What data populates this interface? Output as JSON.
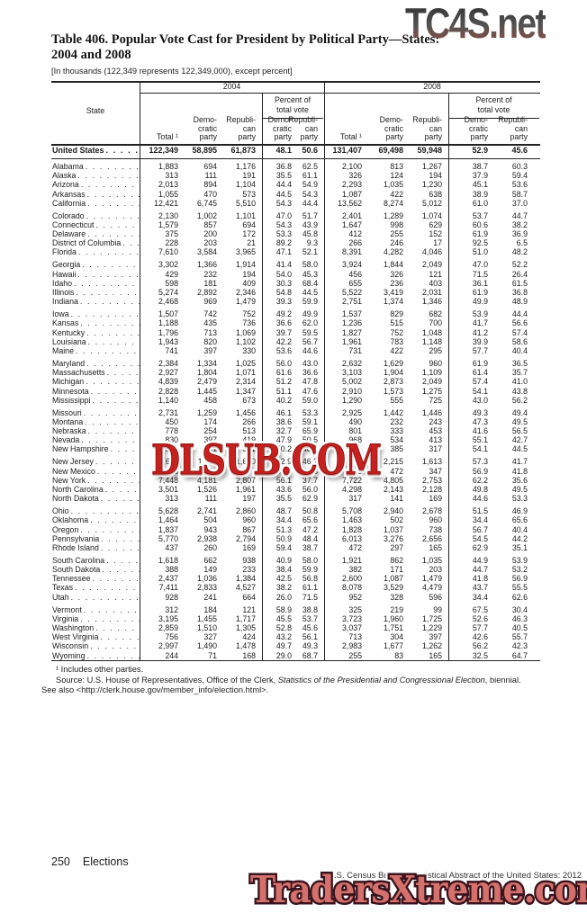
{
  "watermarks": {
    "top": "TC4S.net",
    "middle": "DLSUB.COM",
    "bottom": "TradersXtreme.com"
  },
  "title": {
    "line1": "Table 406. Popular Vote Cast for President by Political Party—States:",
    "line2": "2004 and 2008",
    "bracket_note": "[In thousands (122,349 represents 122,349,000), except percent]"
  },
  "table": {
    "state_header": "State",
    "year1": "2004",
    "year2": "2008",
    "pct_header": "Percent of\ntotal vote",
    "total_label": "Total ¹",
    "dem_label": "Demo-\ncratic\nparty",
    "rep_label": "Republi-\ncan\nparty",
    "us_row": {
      "name": "United States",
      "values": [
        "122,349",
        "58,895",
        "61,873",
        "48.1",
        "50.6",
        "131,407",
        "69,498",
        "59,948",
        "52.9",
        "45.6"
      ]
    },
    "rows": [
      {
        "name": "Alabama",
        "gap": false,
        "values": [
          "1,883",
          "694",
          "1,176",
          "36.8",
          "62.5",
          "2,100",
          "813",
          "1,267",
          "38.7",
          "60.3"
        ]
      },
      {
        "name": "Alaska",
        "gap": false,
        "values": [
          "313",
          "111",
          "191",
          "35.5",
          "61.1",
          "326",
          "124",
          "194",
          "37.9",
          "59.4"
        ]
      },
      {
        "name": "Arizona",
        "gap": false,
        "values": [
          "2,013",
          "894",
          "1,104",
          "44.4",
          "54.9",
          "2,293",
          "1,035",
          "1,230",
          "45.1",
          "53.6"
        ]
      },
      {
        "name": "Arkansas",
        "gap": false,
        "values": [
          "1,055",
          "470",
          "573",
          "44.5",
          "54.3",
          "1,087",
          "422",
          "638",
          "38.9",
          "58.7"
        ]
      },
      {
        "name": "California",
        "gap": false,
        "values": [
          "12,421",
          "6,745",
          "5,510",
          "54.3",
          "44.4",
          "13,562",
          "8,274",
          "5,012",
          "61.0",
          "37.0"
        ]
      },
      {
        "name": "Colorado",
        "gap": true,
        "values": [
          "2,130",
          "1,002",
          "1,101",
          "47.0",
          "51.7",
          "2,401",
          "1,289",
          "1,074",
          "53.7",
          "44.7"
        ]
      },
      {
        "name": "Connecticut",
        "gap": false,
        "values": [
          "1,579",
          "857",
          "694",
          "54.3",
          "43.9",
          "1,647",
          "998",
          "629",
          "60.6",
          "38.2"
        ]
      },
      {
        "name": "Delaware",
        "gap": false,
        "values": [
          "375",
          "200",
          "172",
          "53.3",
          "45.8",
          "412",
          "255",
          "152",
          "61.9",
          "36.9"
        ]
      },
      {
        "name": "District of Columbia",
        "gap": false,
        "values": [
          "228",
          "203",
          "21",
          "89.2",
          "9.3",
          "266",
          "246",
          "17",
          "92.5",
          "6.5"
        ]
      },
      {
        "name": "Florida",
        "gap": false,
        "values": [
          "7,610",
          "3,584",
          "3,965",
          "47.1",
          "52.1",
          "8,391",
          "4,282",
          "4,046",
          "51.0",
          "48.2"
        ]
      },
      {
        "name": "Georgia",
        "gap": true,
        "values": [
          "3,302",
          "1,366",
          "1,914",
          "41.4",
          "58.0",
          "3,924",
          "1,844",
          "2,049",
          "47.0",
          "52.2"
        ]
      },
      {
        "name": "Hawaii",
        "gap": false,
        "values": [
          "429",
          "232",
          "194",
          "54.0",
          "45.3",
          "456",
          "326",
          "121",
          "71.5",
          "26.4"
        ]
      },
      {
        "name": "Idaho",
        "gap": false,
        "values": [
          "598",
          "181",
          "409",
          "30.3",
          "68.4",
          "655",
          "236",
          "403",
          "36.1",
          "61.5"
        ]
      },
      {
        "name": "Illinois",
        "gap": false,
        "values": [
          "5,274",
          "2,892",
          "2,346",
          "54.8",
          "44.5",
          "5,522",
          "3,419",
          "2,031",
          "61.9",
          "36.8"
        ]
      },
      {
        "name": "Indiana",
        "gap": false,
        "values": [
          "2,468",
          "969",
          "1,479",
          "39.3",
          "59.9",
          "2,751",
          "1,374",
          "1,346",
          "49.9",
          "48.9"
        ]
      },
      {
        "name": "Iowa",
        "gap": true,
        "values": [
          "1,507",
          "742",
          "752",
          "49.2",
          "49.9",
          "1,537",
          "829",
          "682",
          "53.9",
          "44.4"
        ]
      },
      {
        "name": "Kansas",
        "gap": false,
        "values": [
          "1,188",
          "435",
          "736",
          "36.6",
          "62.0",
          "1,236",
          "515",
          "700",
          "41.7",
          "56.6"
        ]
      },
      {
        "name": "Kentucky",
        "gap": false,
        "values": [
          "1,796",
          "713",
          "1,069",
          "39.7",
          "59.5",
          "1,827",
          "752",
          "1,048",
          "41.2",
          "57.4"
        ]
      },
      {
        "name": "Louisiana",
        "gap": false,
        "values": [
          "1,943",
          "820",
          "1,102",
          "42.2",
          "56.7",
          "1,961",
          "783",
          "1,148",
          "39.9",
          "58.6"
        ]
      },
      {
        "name": "Maine",
        "gap": false,
        "values": [
          "741",
          "397",
          "330",
          "53.6",
          "44.6",
          "731",
          "422",
          "295",
          "57.7",
          "40.4"
        ]
      },
      {
        "name": "Maryland",
        "gap": true,
        "values": [
          "2,384",
          "1,334",
          "1,025",
          "56.0",
          "43.0",
          "2,632",
          "1,629",
          "960",
          "61.9",
          "36.5"
        ]
      },
      {
        "name": "Massachusetts",
        "gap": false,
        "values": [
          "2,927",
          "1,804",
          "1,071",
          "61.6",
          "36.6",
          "3,103",
          "1,904",
          "1,109",
          "61.4",
          "35.7"
        ]
      },
      {
        "name": "Michigan",
        "gap": false,
        "values": [
          "4,839",
          "2,479",
          "2,314",
          "51.2",
          "47.8",
          "5,002",
          "2,873",
          "2,049",
          "57.4",
          "41.0"
        ]
      },
      {
        "name": "Minnesota",
        "gap": false,
        "values": [
          "2,828",
          "1,445",
          "1,347",
          "51.1",
          "47.6",
          "2,910",
          "1,573",
          "1,275",
          "54.1",
          "43.8"
        ]
      },
      {
        "name": "Mississippi",
        "gap": false,
        "values": [
          "1,140",
          "458",
          "673",
          "40.2",
          "59.0",
          "1,290",
          "555",
          "725",
          "43.0",
          "56.2"
        ]
      },
      {
        "name": "Missouri",
        "gap": true,
        "values": [
          "2,731",
          "1,259",
          "1,456",
          "46.1",
          "53.3",
          "2,925",
          "1,442",
          "1,446",
          "49.3",
          "49.4"
        ]
      },
      {
        "name": "Montana",
        "gap": false,
        "values": [
          "450",
          "174",
          "266",
          "38.6",
          "59.1",
          "490",
          "232",
          "243",
          "47.3",
          "49.5"
        ]
      },
      {
        "name": "Nebraska",
        "gap": false,
        "values": [
          "778",
          "254",
          "513",
          "32.7",
          "65.9",
          "801",
          "333",
          "453",
          "41.6",
          "56.5"
        ]
      },
      {
        "name": "Nevada",
        "gap": false,
        "values": [
          "830",
          "397",
          "419",
          "47.9",
          "50.5",
          "968",
          "534",
          "413",
          "55.1",
          "42.7"
        ]
      },
      {
        "name": "New Hampshire",
        "gap": false,
        "values": [
          "678",
          "341",
          "331",
          "50.2",
          "48.9",
          "711",
          "385",
          "317",
          "54.1",
          "44.5"
        ]
      },
      {
        "name": "New Jersey",
        "gap": true,
        "values": [
          "3,611",
          "1,911",
          "1,670",
          "52.9",
          "46.2",
          "3,868",
          "2,215",
          "1,613",
          "57.3",
          "41.7"
        ]
      },
      {
        "name": "New Mexico",
        "gap": false,
        "values": [
          "756",
          "370",
          "377",
          "49.0",
          "49.8",
          "830",
          "472",
          "347",
          "56.9",
          "41.8"
        ]
      },
      {
        "name": "New York",
        "gap": false,
        "values": [
          "7,448",
          "4,181",
          "2,807",
          "56.1",
          "37.7",
          "7,722",
          "4,805",
          "2,753",
          "62.2",
          "35.6"
        ]
      },
      {
        "name": "North Carolina",
        "gap": false,
        "values": [
          "3,501",
          "1,526",
          "1,961",
          "43.6",
          "56.0",
          "4,298",
          "2,143",
          "2,128",
          "49.8",
          "49.5"
        ]
      },
      {
        "name": "North Dakota",
        "gap": false,
        "values": [
          "313",
          "111",
          "197",
          "35.5",
          "62.9",
          "317",
          "141",
          "169",
          "44.6",
          "53.3"
        ]
      },
      {
        "name": "Ohio",
        "gap": true,
        "values": [
          "5,628",
          "2,741",
          "2,860",
          "48.7",
          "50.8",
          "5,708",
          "2,940",
          "2,678",
          "51.5",
          "46.9"
        ]
      },
      {
        "name": "Oklahoma",
        "gap": false,
        "values": [
          "1,464",
          "504",
          "960",
          "34.4",
          "65.6",
          "1,463",
          "502",
          "960",
          "34.4",
          "65.6"
        ]
      },
      {
        "name": "Oregon",
        "gap": false,
        "values": [
          "1,837",
          "943",
          "867",
          "51.3",
          "47.2",
          "1,828",
          "1,037",
          "738",
          "56.7",
          "40.4"
        ]
      },
      {
        "name": "Pennsylvania",
        "gap": false,
        "values": [
          "5,770",
          "2,938",
          "2,794",
          "50.9",
          "48.4",
          "6,013",
          "3,276",
          "2,656",
          "54.5",
          "44.2"
        ]
      },
      {
        "name": "Rhode Island",
        "gap": false,
        "values": [
          "437",
          "260",
          "169",
          "59.4",
          "38.7",
          "472",
          "297",
          "165",
          "62.9",
          "35.1"
        ]
      },
      {
        "name": "South Carolina",
        "gap": true,
        "values": [
          "1,618",
          "662",
          "938",
          "40.9",
          "58.0",
          "1,921",
          "862",
          "1,035",
          "44.9",
          "53.9"
        ]
      },
      {
        "name": "South Dakota",
        "gap": false,
        "values": [
          "388",
          "149",
          "233",
          "38.4",
          "59.9",
          "382",
          "171",
          "203",
          "44.7",
          "53.2"
        ]
      },
      {
        "name": "Tennessee",
        "gap": false,
        "values": [
          "2,437",
          "1,036",
          "1,384",
          "42.5",
          "56.8",
          "2,600",
          "1,087",
          "1,479",
          "41.8",
          "56.9"
        ]
      },
      {
        "name": "Texas",
        "gap": false,
        "values": [
          "7,411",
          "2,833",
          "4,527",
          "38.2",
          "61.1",
          "8,078",
          "3,529",
          "4,479",
          "43.7",
          "55.5"
        ]
      },
      {
        "name": "Utah",
        "gap": false,
        "values": [
          "928",
          "241",
          "664",
          "26.0",
          "71.5",
          "952",
          "328",
          "596",
          "34.4",
          "62.6"
        ]
      },
      {
        "name": "Vermont",
        "gap": true,
        "values": [
          "312",
          "184",
          "121",
          "58.9",
          "38.8",
          "325",
          "219",
          "99",
          "67.5",
          "30.4"
        ]
      },
      {
        "name": "Virginia",
        "gap": false,
        "values": [
          "3,195",
          "1,455",
          "1,717",
          "45.5",
          "53.7",
          "3,723",
          "1,960",
          "1,725",
          "52.6",
          "46.3"
        ]
      },
      {
        "name": "Washington",
        "gap": false,
        "values": [
          "2,859",
          "1,510",
          "1,305",
          "52.8",
          "45.6",
          "3,037",
          "1,751",
          "1,229",
          "57.7",
          "40.5"
        ]
      },
      {
        "name": "West Virginia",
        "gap": false,
        "values": [
          "756",
          "327",
          "424",
          "43.2",
          "56.1",
          "713",
          "304",
          "397",
          "42.6",
          "55.7"
        ]
      },
      {
        "name": "Wisconsin",
        "gap": false,
        "values": [
          "2,997",
          "1,490",
          "1,478",
          "49.7",
          "49.3",
          "2,983",
          "1,677",
          "1,262",
          "56.2",
          "42.3"
        ]
      },
      {
        "name": "Wyoming",
        "gap": false,
        "values": [
          "244",
          "71",
          "168",
          "29.0",
          "68.7",
          "255",
          "83",
          "165",
          "32.5",
          "64.7"
        ]
      }
    ]
  },
  "footnotes": {
    "fn1": "¹ Includes other parties.",
    "source_prefix": "Source: U.S. House of Representatives, Office of the Clerk, ",
    "source_italic": "Statistics of the Presidential and Congressional Election",
    "source_suffix": ", biennial. See also <http://clerk.house.gov/member_info/election.html>."
  },
  "footer": {
    "page_number": "250",
    "section": "Elections",
    "credit": "U.S. Census Bureau, Statistical Abstract of the United States: 2012"
  }
}
